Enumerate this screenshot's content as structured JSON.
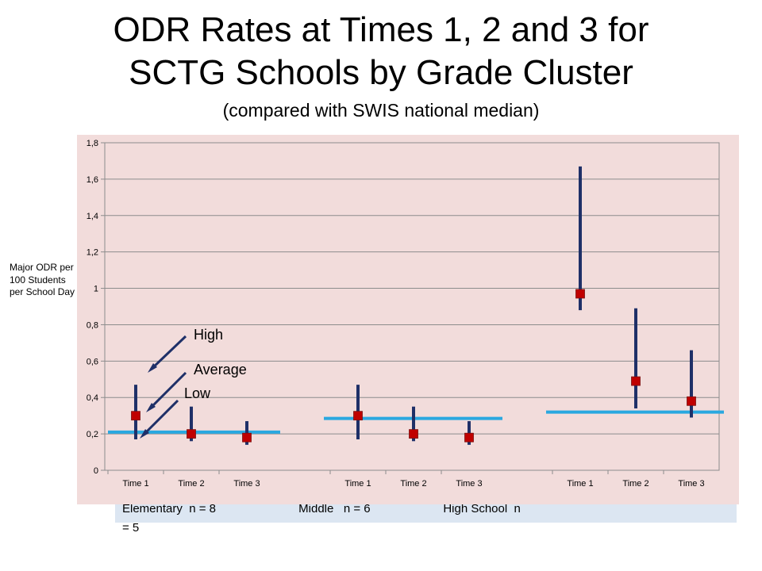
{
  "title_line1": "ODR Rates at Times 1, 2 and 3 for",
  "title_line2": "SCTG Schools by Grade Cluster",
  "subtitle": "(compared with SWIS national median)",
  "footer_text_line1": "Elementary  n = 8                         Middle   n = 6                      High School  n",
  "footer_text_line2": "= 5",
  "annotations": {
    "high": "High",
    "average": "Average",
    "low": "Low"
  },
  "colors": {
    "range": "#1f3068",
    "marker": "#c00000",
    "median": "#2aa8e0",
    "plot_bg": "#f2dcdb",
    "footer_bg": "#dce6f2"
  },
  "chart_data": {
    "type": "scatter",
    "ylabel": "Major ODR per 100 Students per School Day",
    "ylim": [
      0,
      1.8
    ],
    "yticks": [
      "0",
      "0,2",
      "0,4",
      "0,6",
      "0,8",
      "1",
      "1,2",
      "1,4",
      "1,6",
      "1,8"
    ],
    "ytick_values": [
      0,
      0.2,
      0.4,
      0.6,
      0.8,
      1.0,
      1.2,
      1.4,
      1.6,
      1.8
    ],
    "grid": true,
    "groups": [
      {
        "categories": [
          "Time 1",
          "Time 2",
          "Time 3"
        ],
        "high": [
          0.47,
          0.35,
          0.27
        ],
        "low": [
          0.17,
          0.16,
          0.14
        ],
        "average": [
          0.3,
          0.2,
          0.18
        ],
        "national_median": 0.21
      },
      {
        "categories": [
          "Time 1",
          "Time 2",
          "Time 3"
        ],
        "high": [
          0.47,
          0.35,
          0.27
        ],
        "low": [
          0.17,
          0.16,
          0.14
        ],
        "average": [
          0.3,
          0.2,
          0.18
        ],
        "national_median": 0.285
      },
      {
        "categories": [
          "Time 1",
          "Time 2",
          "Time 3"
        ],
        "high": [
          1.67,
          0.89,
          0.66
        ],
        "low": [
          0.88,
          0.34,
          0.29
        ],
        "average": [
          0.97,
          0.49,
          0.38
        ],
        "national_median": 0.32
      }
    ]
  }
}
